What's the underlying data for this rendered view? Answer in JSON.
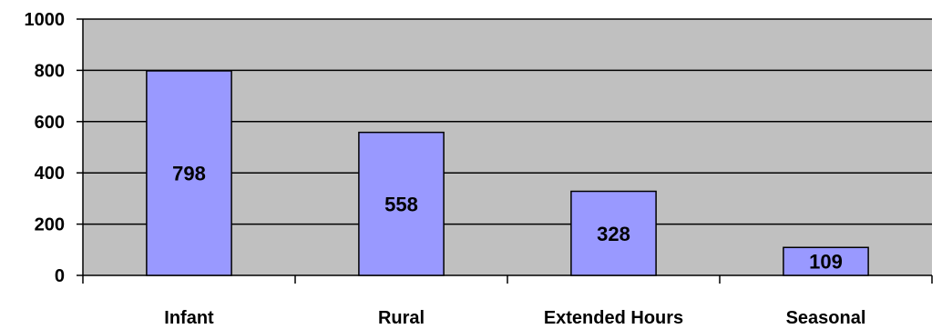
{
  "chart_data": {
    "type": "bar",
    "categories": [
      "Infant",
      "Rural",
      "Extended Hours",
      "Seasonal"
    ],
    "values": [
      798,
      558,
      328,
      109
    ],
    "data_labels": [
      "798",
      "558",
      "328",
      "109"
    ],
    "title": "",
    "xlabel": "",
    "ylabel": "",
    "ylim": [
      0,
      1000
    ],
    "yticks": [
      0,
      200,
      400,
      600,
      800,
      1000
    ],
    "ytick_labels": [
      "0",
      "200",
      "400",
      "600",
      "800",
      "1000"
    ],
    "grid": true,
    "legend": "none",
    "colors": {
      "plot_background": "#c0c0c0",
      "bar_fill": "#9999ff",
      "bar_stroke": "#000000",
      "gridline": "#000000"
    }
  }
}
